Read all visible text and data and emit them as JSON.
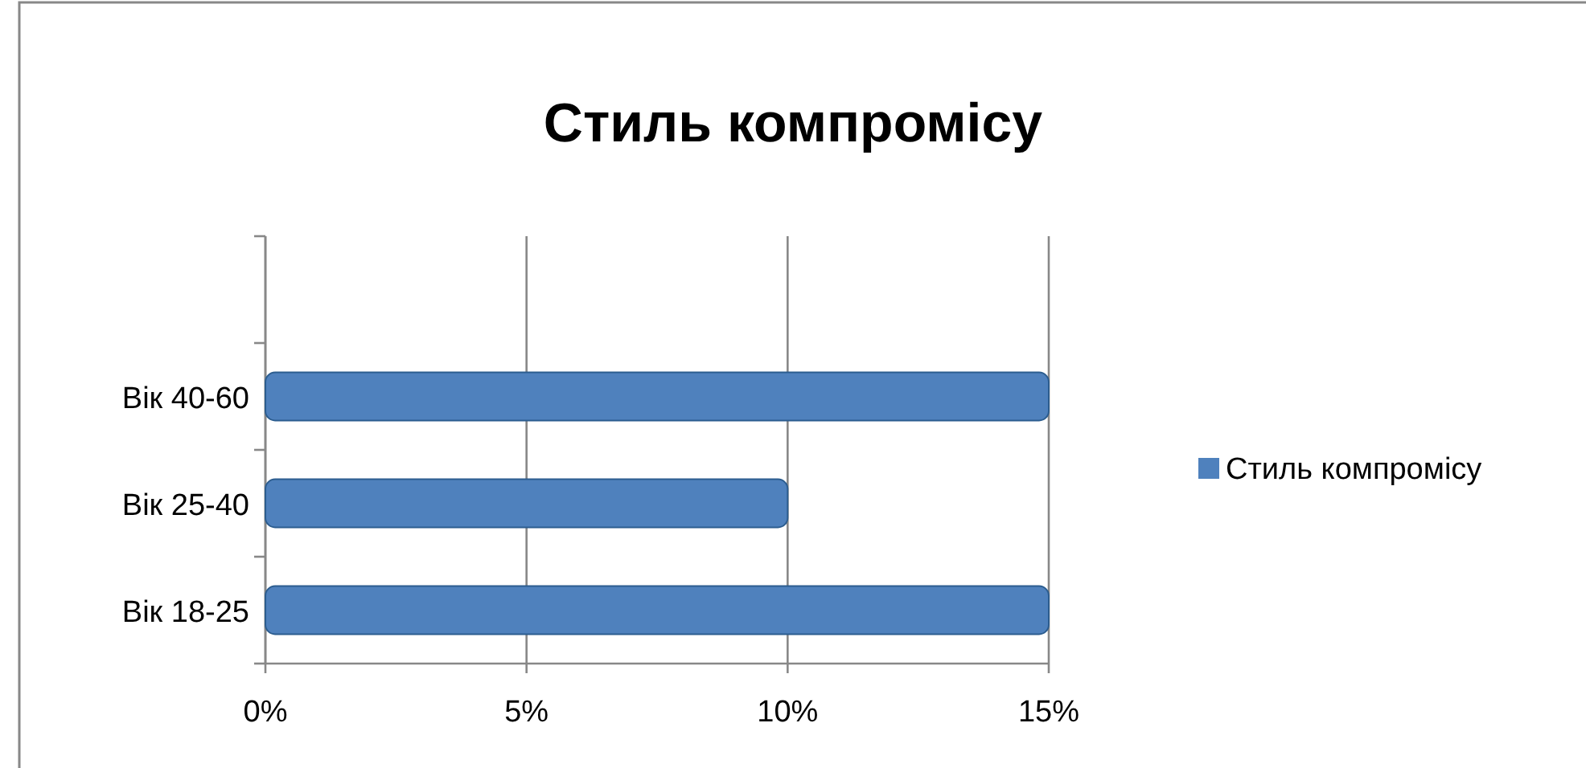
{
  "chart_data": {
    "type": "bar",
    "orientation": "horizontal",
    "title": "Стиль компромісу",
    "categories": [
      null,
      "Вік 40-60",
      "Вік 25-40",
      "Вік 18-25"
    ],
    "series": [
      {
        "name": "Стиль компромісу",
        "color": "#4f81bd",
        "values": [
          null,
          15,
          10,
          15
        ]
      }
    ],
    "xlim": [
      0,
      15
    ],
    "xticks": [
      {
        "value": 0,
        "label": "0%"
      },
      {
        "value": 5,
        "label": "5%"
      },
      {
        "value": 10,
        "label": "10%"
      },
      {
        "value": 15,
        "label": "15%"
      }
    ],
    "grid": "x",
    "legend": "right"
  }
}
